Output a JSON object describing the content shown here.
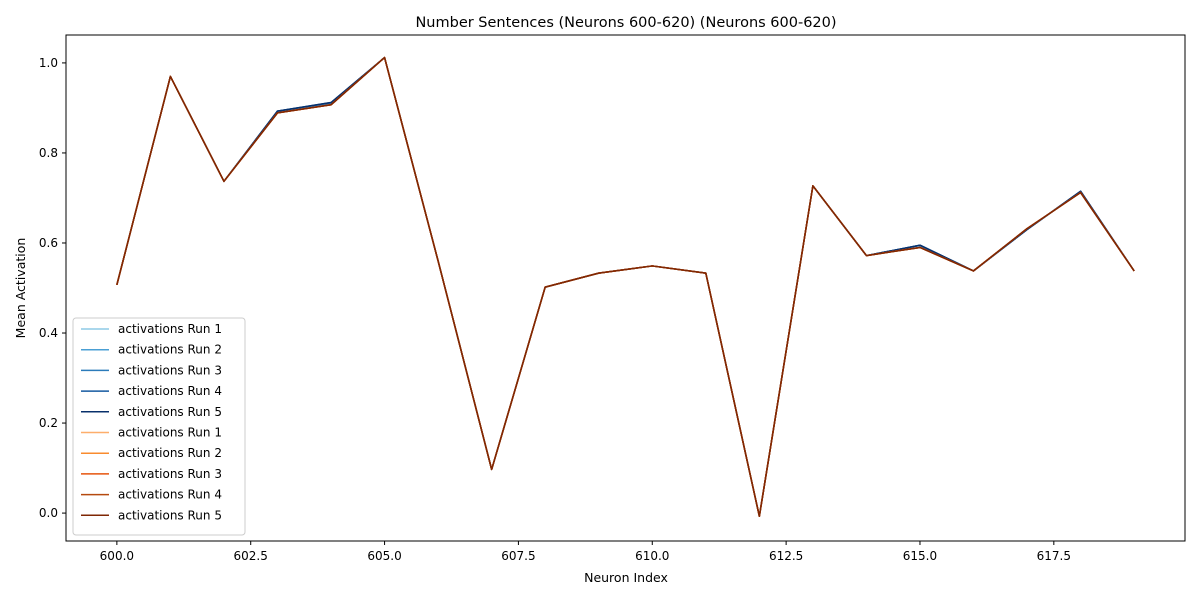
{
  "chart_data": {
    "type": "line",
    "title": "Number Sentences (Neurons 600-620) (Neurons 600-620)",
    "xlabel": "Neuron Index",
    "ylabel": "Mean Activation",
    "xlim": [
      599.05,
      619.95
    ],
    "ylim": [
      -0.062,
      1.062
    ],
    "xticks": [
      600.0,
      602.5,
      605.0,
      607.5,
      610.0,
      612.5,
      615.0,
      617.5
    ],
    "xtick_labels": [
      "600.0",
      "602.5",
      "605.0",
      "607.5",
      "610.0",
      "612.5",
      "615.0",
      "617.5"
    ],
    "yticks": [
      0.0,
      0.2,
      0.4,
      0.6,
      0.8,
      1.0
    ],
    "ytick_labels": [
      "0.0",
      "0.2",
      "0.4",
      "0.6",
      "0.8",
      "1.0"
    ],
    "grid": false,
    "legend_position": "lower-left",
    "x": [
      600,
      601,
      602,
      603,
      604,
      605,
      606,
      607,
      608,
      609,
      610,
      611,
      612,
      613,
      614,
      615,
      616,
      617,
      618,
      619
    ],
    "series": [
      {
        "name": "activations Run 1",
        "color": "#8ecae6",
        "values": [
          0.507,
          0.97,
          0.737,
          0.892,
          0.91,
          1.012,
          0.56,
          0.097,
          0.502,
          0.533,
          0.549,
          0.533,
          -0.007,
          0.727,
          0.572,
          0.594,
          0.538,
          0.63,
          0.714,
          0.538
        ]
      },
      {
        "name": "activations Run 2",
        "color": "#4a9fd4",
        "values": [
          0.507,
          0.97,
          0.737,
          0.893,
          0.911,
          1.012,
          0.56,
          0.097,
          0.502,
          0.533,
          0.549,
          0.533,
          -0.007,
          0.727,
          0.572,
          0.595,
          0.538,
          0.63,
          0.714,
          0.538
        ]
      },
      {
        "name": "activations Run 3",
        "color": "#2b7bba",
        "values": [
          0.507,
          0.97,
          0.737,
          0.893,
          0.911,
          1.012,
          0.56,
          0.097,
          0.502,
          0.533,
          0.549,
          0.533,
          -0.007,
          0.727,
          0.572,
          0.595,
          0.538,
          0.63,
          0.714,
          0.538
        ]
      },
      {
        "name": "activations Run 4",
        "color": "#1459a0",
        "values": [
          0.507,
          0.97,
          0.737,
          0.893,
          0.912,
          1.012,
          0.56,
          0.097,
          0.502,
          0.533,
          0.549,
          0.533,
          -0.007,
          0.727,
          0.572,
          0.595,
          0.538,
          0.63,
          0.715,
          0.538
        ]
      },
      {
        "name": "activations Run 5",
        "color": "#08306b",
        "values": [
          0.507,
          0.97,
          0.737,
          0.893,
          0.912,
          1.012,
          0.56,
          0.097,
          0.502,
          0.533,
          0.549,
          0.533,
          -0.007,
          0.727,
          0.572,
          0.595,
          0.538,
          0.63,
          0.715,
          0.538
        ]
      },
      {
        "name": "activations Run 1",
        "color": "#fdae6b",
        "values": [
          0.507,
          0.97,
          0.737,
          0.889,
          0.907,
          1.012,
          0.56,
          0.097,
          0.502,
          0.533,
          0.549,
          0.533,
          -0.007,
          0.727,
          0.572,
          0.59,
          0.538,
          0.632,
          0.712,
          0.538
        ]
      },
      {
        "name": "activations Run 2",
        "color": "#f98b2e",
        "values": [
          0.507,
          0.97,
          0.737,
          0.889,
          0.907,
          1.012,
          0.56,
          0.097,
          0.502,
          0.533,
          0.549,
          0.533,
          -0.007,
          0.727,
          0.572,
          0.59,
          0.538,
          0.632,
          0.712,
          0.538
        ]
      },
      {
        "name": "activations Run 3",
        "color": "#e6550d",
        "values": [
          0.507,
          0.97,
          0.737,
          0.889,
          0.907,
          1.012,
          0.56,
          0.097,
          0.502,
          0.533,
          0.549,
          0.533,
          -0.007,
          0.727,
          0.572,
          0.59,
          0.538,
          0.632,
          0.712,
          0.538
        ]
      },
      {
        "name": "activations Run 4",
        "color": "#b54a0f",
        "values": [
          0.507,
          0.97,
          0.737,
          0.889,
          0.907,
          1.012,
          0.56,
          0.097,
          0.502,
          0.533,
          0.549,
          0.533,
          -0.007,
          0.727,
          0.572,
          0.59,
          0.538,
          0.632,
          0.712,
          0.538
        ]
      },
      {
        "name": "activations Run 5",
        "color": "#7f2704",
        "values": [
          0.507,
          0.97,
          0.737,
          0.889,
          0.907,
          1.012,
          0.56,
          0.097,
          0.502,
          0.533,
          0.549,
          0.533,
          -0.007,
          0.727,
          0.572,
          0.59,
          0.538,
          0.632,
          0.712,
          0.538
        ]
      }
    ]
  }
}
